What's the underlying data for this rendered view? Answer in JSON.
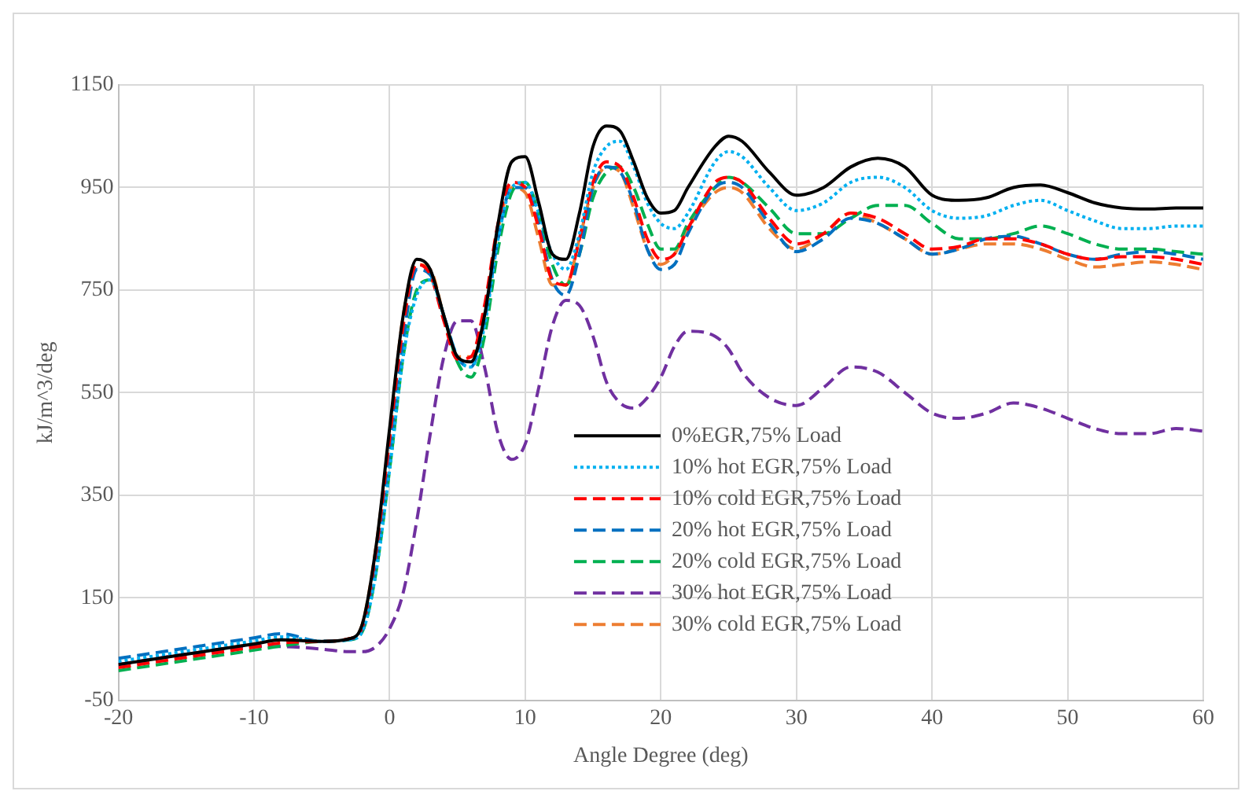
{
  "chart_data": {
    "type": "line",
    "xlabel": "Angle Degree (deg)",
    "ylabel": "kJ/m^3/deg",
    "x": [
      -20,
      -15,
      -10,
      -8,
      -5,
      -3,
      -2,
      -1,
      0,
      1,
      2,
      3,
      4,
      5,
      6,
      7,
      8,
      9,
      10,
      11,
      12,
      13,
      14,
      15,
      16,
      17,
      18,
      19,
      20,
      21,
      22,
      24,
      25,
      26,
      28,
      30,
      32,
      34,
      36,
      38,
      40,
      42,
      44,
      46,
      48,
      50,
      52,
      54,
      56,
      58,
      60
    ],
    "series": [
      {
        "name": "0%EGR,75% Load",
        "color": "#000000",
        "line_style": "solid",
        "values": [
          20,
          40,
          60,
          68,
          65,
          70,
          100,
          250,
          480,
          700,
          810,
          790,
          700,
          620,
          610,
          700,
          880,
          1000,
          1010,
          920,
          820,
          810,
          900,
          1030,
          1070,
          1060,
          1000,
          930,
          900,
          905,
          950,
          1030,
          1050,
          1040,
          980,
          935,
          950,
          990,
          1007,
          990,
          935,
          925,
          930,
          950,
          955,
          940,
          920,
          910,
          908,
          910,
          910
        ]
      },
      {
        "name": "10% hot EGR,75% Load",
        "color": "#00b0f0",
        "line_style": "dotted",
        "values": [
          26,
          46,
          66,
          74,
          65,
          68,
          85,
          200,
          400,
          620,
          740,
          770,
          700,
          620,
          600,
          680,
          850,
          950,
          960,
          900,
          820,
          790,
          860,
          980,
          1030,
          1040,
          990,
          920,
          880,
          870,
          900,
          1000,
          1020,
          1010,
          950,
          905,
          920,
          960,
          970,
          950,
          905,
          890,
          895,
          915,
          925,
          905,
          885,
          870,
          870,
          875,
          875
        ]
      },
      {
        "name": "10% cold EGR,75% Load",
        "color": "#ff0000",
        "line_style": "dashed",
        "values": [
          14,
          34,
          54,
          62,
          65,
          70,
          95,
          240,
          460,
          680,
          800,
          780,
          690,
          615,
          620,
          720,
          880,
          960,
          950,
          870,
          770,
          760,
          850,
          960,
          1000,
          990,
          930,
          850,
          810,
          820,
          870,
          960,
          970,
          960,
          890,
          840,
          860,
          900,
          890,
          860,
          830,
          835,
          850,
          850,
          840,
          820,
          810,
          815,
          815,
          810,
          800
        ]
      },
      {
        "name": "20% hot EGR,75% Load",
        "color": "#0070c0",
        "line_style": "dashed",
        "values": [
          32,
          52,
          72,
          80,
          65,
          69,
          90,
          220,
          430,
          650,
          790,
          780,
          700,
          620,
          600,
          690,
          850,
          950,
          950,
          880,
          770,
          740,
          820,
          950,
          990,
          980,
          920,
          830,
          790,
          800,
          860,
          950,
          960,
          950,
          880,
          825,
          850,
          890,
          880,
          850,
          820,
          830,
          850,
          855,
          840,
          820,
          810,
          820,
          825,
          820,
          810
        ]
      },
      {
        "name": "20% cold EGR,75% Load",
        "color": "#00b050",
        "line_style": "dashed",
        "values": [
          8,
          28,
          48,
          56,
          65,
          68,
          85,
          200,
          400,
          620,
          750,
          770,
          700,
          610,
          580,
          660,
          830,
          940,
          960,
          900,
          800,
          760,
          820,
          930,
          980,
          990,
          950,
          880,
          830,
          830,
          880,
          950,
          970,
          960,
          910,
          860,
          860,
          890,
          915,
          915,
          880,
          850,
          850,
          860,
          875,
          860,
          840,
          830,
          830,
          825,
          820
        ]
      },
      {
        "name": "30% hot EGR,75% Load",
        "color": "#7030a0",
        "line_style": "dashed",
        "values": [
          20,
          40,
          55,
          55,
          50,
          45,
          45,
          55,
          90,
          160,
          300,
          470,
          620,
          690,
          690,
          600,
          470,
          420,
          450,
          560,
          680,
          730,
          720,
          660,
          570,
          530,
          520,
          540,
          580,
          640,
          670,
          660,
          635,
          590,
          540,
          525,
          560,
          600,
          590,
          550,
          510,
          500,
          510,
          530,
          520,
          500,
          480,
          470,
          470,
          480,
          475
        ]
      },
      {
        "name": "30% cold EGR,75% Load",
        "color": "#ed7d31",
        "line_style": "dashed",
        "values": [
          20,
          40,
          60,
          68,
          65,
          70,
          100,
          250,
          470,
          700,
          800,
          790,
          700,
          620,
          620,
          710,
          870,
          950,
          940,
          850,
          760,
          760,
          850,
          950,
          990,
          980,
          910,
          830,
          800,
          820,
          870,
          940,
          950,
          940,
          870,
          830,
          860,
          900,
          880,
          850,
          820,
          830,
          840,
          840,
          830,
          810,
          795,
          800,
          805,
          800,
          790
        ]
      }
    ],
    "xlim": [
      -20,
      60
    ],
    "xticks": [
      -20,
      -10,
      0,
      10,
      20,
      30,
      40,
      50,
      60
    ],
    "ylim": [
      -50,
      1150
    ],
    "yticks": [
      -50,
      150,
      350,
      550,
      750,
      950,
      1150
    ],
    "grid": true,
    "legend": "bottom"
  }
}
